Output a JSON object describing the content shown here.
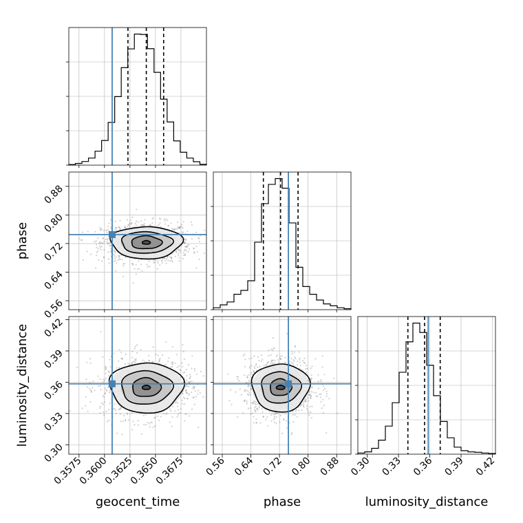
{
  "colors": {
    "truth": "#4682b4",
    "hist": "#000000",
    "grid": "#b0b0b0"
  },
  "chart_data": {
    "type": "corner",
    "parameters": [
      {
        "name": "geocent_time",
        "label": "geocent_time",
        "range": [
          0.3565,
          0.37
        ],
        "ticks": [
          0.3575,
          0.36,
          0.3625,
          0.365,
          0.3675
        ],
        "tick_labels": [
          "0.3575",
          "0.3600",
          "0.3625",
          "0.3650",
          "0.3675"
        ],
        "truth": 0.36075,
        "quantiles": [
          0.3623,
          0.3641,
          0.3658
        ],
        "hist_bins": [
          0.3,
          0.8,
          1.7,
          3.3,
          6.5,
          11.5,
          19.9,
          31.9,
          45.4,
          54.1,
          61.0,
          60.8,
          54.2,
          43.2,
          30.7,
          20.1,
          11.3,
          6.0,
          3.3,
          1.6,
          0.4
        ]
      },
      {
        "name": "phase",
        "label": "phase",
        "range": [
          0.535,
          0.92
        ],
        "ticks": [
          0.56,
          0.64,
          0.72,
          0.8,
          0.88
        ],
        "tick_labels": [
          "0.56",
          "0.64",
          "0.72",
          "0.80",
          "0.88"
        ],
        "truth": 0.745,
        "quantiles": [
          0.675,
          0.723,
          0.772
        ],
        "hist_bins": [
          1.0,
          2.5,
          4.0,
          8.0,
          10.0,
          15.0,
          35.0,
          55.0,
          65.0,
          68.0,
          63.0,
          45.0,
          22.0,
          12.0,
          8.0,
          5.0,
          3.0,
          2.0,
          1.0,
          0.5
        ]
      },
      {
        "name": "luminosity_distance",
        "label": "luminosity_distance",
        "range": [
          0.291,
          0.423
        ],
        "ticks": [
          0.3,
          0.33,
          0.36,
          0.39,
          0.42
        ],
        "tick_labels": [
          "0.30",
          "0.33",
          "0.36",
          "0.39",
          "0.42"
        ],
        "truth": 0.3585,
        "quantiles": [
          0.339,
          0.355,
          0.37
        ],
        "hist_bins": [
          0.5,
          1.0,
          2.5,
          6.0,
          12.0,
          22.0,
          35.0,
          48.0,
          56.0,
          52.0,
          38.0,
          25.0,
          14.0,
          7.0,
          3.0,
          1.5,
          1.0,
          0.8,
          0.5,
          0.3
        ]
      }
    ],
    "pairs": [
      {
        "x": "geocent_time",
        "y": "phase",
        "center": [
          0.3641,
          0.723
        ],
        "contour_radii": [
          [
            0.0004,
            0.005
          ],
          [
            0.0015,
            0.018
          ],
          [
            0.0025,
            0.03
          ],
          [
            0.0035,
            0.045
          ]
        ]
      },
      {
        "x": "geocent_time",
        "y": "luminosity_distance",
        "center": [
          0.3641,
          0.355
        ],
        "contour_radii": [
          [
            0.0004,
            0.002
          ],
          [
            0.0014,
            0.009
          ],
          [
            0.0025,
            0.016
          ],
          [
            0.0036,
            0.024
          ]
        ]
      },
      {
        "x": "phase",
        "y": "luminosity_distance",
        "center": [
          0.723,
          0.355
        ],
        "contour_radii": [
          [
            0.012,
            0.002
          ],
          [
            0.03,
            0.008
          ],
          [
            0.055,
            0.015
          ],
          [
            0.08,
            0.023
          ]
        ]
      }
    ],
    "xlabels": [
      "geocent_time",
      "phase",
      "luminosity_distance"
    ],
    "ylabels": [
      "",
      "phase",
      "luminosity_distance"
    ],
    "grid": true
  }
}
